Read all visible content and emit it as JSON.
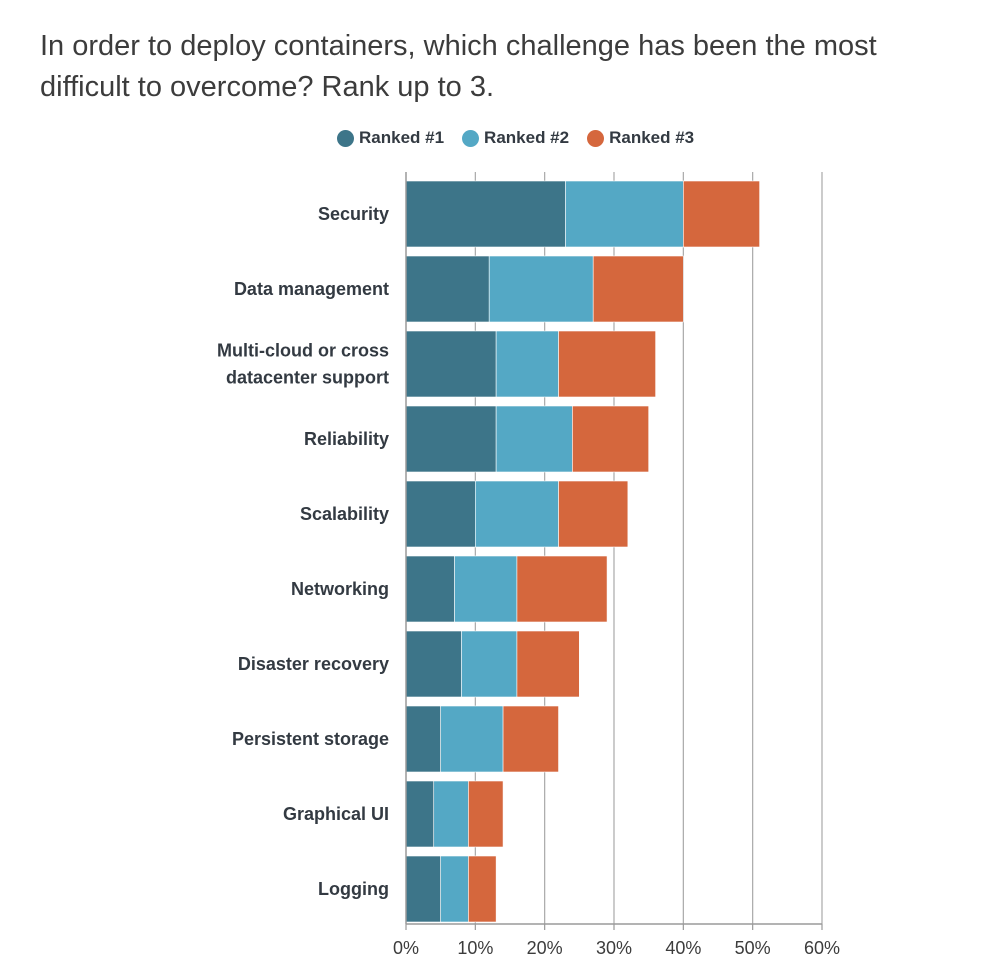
{
  "title": "In order to deploy containers, which challenge has been the most difficult to overcome? Rank up to 3.",
  "chart_data": {
    "type": "bar",
    "orientation": "horizontal",
    "stacked": true,
    "title": "In order to deploy containers, which challenge has been the most difficult to overcome? Rank up to 3.",
    "xlabel": "",
    "ylabel": "",
    "xlim": [
      0,
      60
    ],
    "xticks": [
      "0%",
      "10%",
      "20%",
      "30%",
      "40%",
      "50%",
      "60%"
    ],
    "grid": true,
    "legend_position": "top",
    "categories": [
      [
        "Security"
      ],
      [
        "Data management"
      ],
      [
        "Multi-cloud or cross",
        "datacenter support"
      ],
      [
        "Reliability"
      ],
      [
        "Scalability"
      ],
      [
        "Networking"
      ],
      [
        "Disaster recovery"
      ],
      [
        "Persistent storage"
      ],
      [
        "Graphical UI"
      ],
      [
        "Logging"
      ]
    ],
    "series": [
      {
        "name": "Ranked #1",
        "color": "#3d7589",
        "values": [
          23,
          12,
          13,
          13,
          10,
          7,
          8,
          5,
          4,
          5
        ]
      },
      {
        "name": "Ranked #2",
        "color": "#54a8c5",
        "values": [
          17,
          15,
          9,
          11,
          12,
          9,
          8,
          9,
          5,
          4
        ]
      },
      {
        "name": "Ranked #3",
        "color": "#d5673d",
        "values": [
          11,
          13,
          14,
          11,
          10,
          13,
          9,
          8,
          5,
          4
        ]
      }
    ]
  }
}
